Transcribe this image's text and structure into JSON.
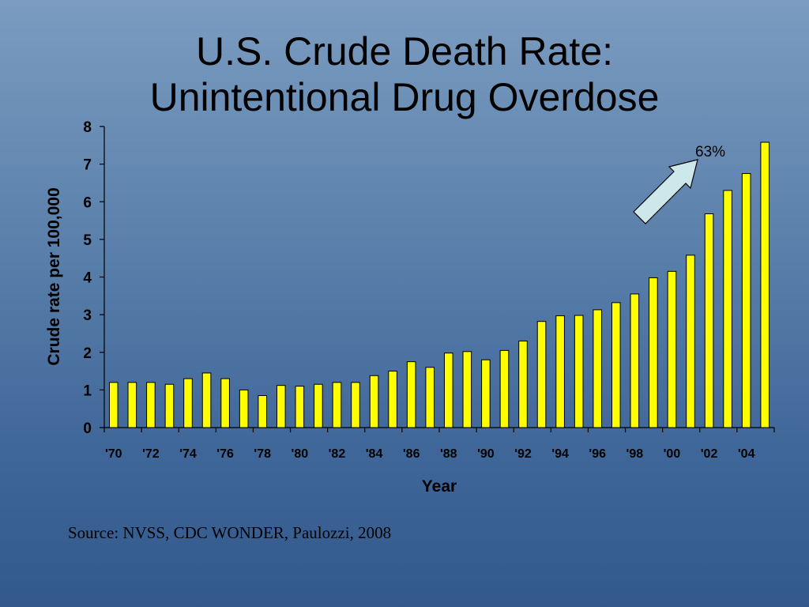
{
  "slide": {
    "title_line1": "U.S. Crude Death Rate:",
    "title_line2": "Unintentional Drug Overdose",
    "source": "Source: NVSS, CDC WONDER, Paulozzi, 2008"
  },
  "chart_data": {
    "type": "bar",
    "title": "U.S. Crude Death Rate: Unintentional Drug Overdose",
    "xlabel": "Year",
    "ylabel": "Crude rate per 100,000",
    "ylim": [
      0,
      8
    ],
    "yticks": [
      0,
      1,
      2,
      3,
      4,
      5,
      6,
      7,
      8
    ],
    "categories": [
      "1970",
      "1971",
      "1972",
      "1973",
      "1974",
      "1975",
      "1976",
      "1977",
      "1978",
      "1979",
      "1980",
      "1981",
      "1982",
      "1983",
      "1984",
      "1985",
      "1986",
      "1987",
      "1988",
      "1989",
      "1990",
      "1991",
      "1992",
      "1993",
      "1994",
      "1995",
      "1996",
      "1997",
      "1998",
      "1999",
      "2000",
      "2001",
      "2002",
      "2003",
      "2004",
      "2005"
    ],
    "xtick_labels": [
      "'70",
      "'72",
      "'74",
      "'76",
      "'78",
      "'80",
      "'82",
      "'84",
      "'86",
      "'88",
      "'90",
      "'92",
      "'94",
      "'96",
      "'98",
      "'00",
      "'02",
      "'04"
    ],
    "values": [
      1.2,
      1.2,
      1.2,
      1.15,
      1.3,
      1.45,
      1.3,
      1.0,
      0.85,
      1.12,
      1.1,
      1.15,
      1.2,
      1.2,
      1.38,
      1.5,
      1.75,
      1.6,
      1.98,
      2.02,
      1.8,
      2.05,
      2.3,
      2.82,
      2.97,
      2.98,
      3.13,
      3.32,
      3.55,
      3.98,
      4.15,
      4.58,
      5.68,
      6.3,
      6.75,
      7.58
    ],
    "bar_color": "#ffff00",
    "annotation": {
      "text": "63%",
      "arrow_color": "#cde8ea"
    },
    "grid": false,
    "legend": "none"
  }
}
